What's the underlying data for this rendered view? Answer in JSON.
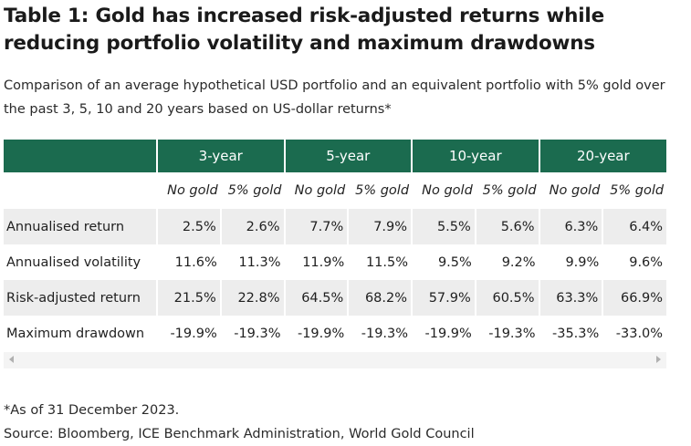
{
  "title": "Table 1: Gold has increased risk-adjusted returns while reducing portfolio volatility and maximum drawdowns",
  "subtitle": "Comparison of an average hypothetical USD portfolio and an equivalent portfolio with 5% gold over the past 3, 5, 10 and 20 years based on US-dollar returns*",
  "table": {
    "periods": [
      "3-year",
      "5-year",
      "10-year",
      "20-year"
    ],
    "subheaders": [
      "No gold",
      "5% gold",
      "No gold",
      "5% gold",
      "No gold",
      "5% gold",
      "No gold",
      "5% gold"
    ],
    "rows": [
      {
        "label": "Annualised return",
        "values": [
          "2.5%",
          "2.6%",
          "7.7%",
          "7.9%",
          "5.5%",
          "5.6%",
          "6.3%",
          "6.4%"
        ]
      },
      {
        "label": "Annualised volatility",
        "values": [
          "11.6%",
          "11.3%",
          "11.9%",
          "11.5%",
          "9.5%",
          "9.2%",
          "9.9%",
          "9.6%"
        ]
      },
      {
        "label": "Risk-adjusted return",
        "values": [
          "21.5%",
          "22.8%",
          "64.5%",
          "68.2%",
          "57.9%",
          "60.5%",
          "63.3%",
          "66.9%"
        ]
      },
      {
        "label": "Maximum drawdown",
        "values": [
          "-19.9%",
          "-19.3%",
          "-19.9%",
          "-19.3%",
          "-19.9%",
          "-19.3%",
          "-35.3%",
          "-33.0%"
        ]
      }
    ]
  },
  "colors": {
    "header_bg": "#1b6b4f",
    "row_shade": "#ededed"
  },
  "footnotes": {
    "as_of": "*As of 31 December 2023.",
    "source": "Source: Bloomberg, ICE Benchmark Administration, World Gold Council"
  }
}
